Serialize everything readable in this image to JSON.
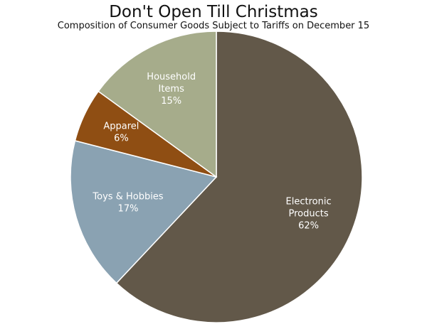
{
  "chart_data": {
    "type": "pie",
    "title": "Don't Open Till Christmas",
    "subtitle": "Composition of Consumer Goods Subject to Tariffs on December 15",
    "slices": [
      {
        "label_lines": [
          "Electronic",
          "Products"
        ],
        "value": 62,
        "value_label": "62%",
        "color": "#625849"
      },
      {
        "label_lines": [
          "Toys & Hobbies"
        ],
        "value": 17,
        "value_label": "17%",
        "color": "#8aa2b2"
      },
      {
        "label_lines": [
          "Apparel"
        ],
        "value": 6,
        "value_label": "6%",
        "color": "#8f4e13"
      },
      {
        "label_lines": [
          "Household",
          "Items"
        ],
        "value": 15,
        "value_label": "15%",
        "color": "#a6ac8b"
      }
    ],
    "start": "top",
    "direction": "clockwise",
    "slice_border_color": "#ffffff"
  }
}
